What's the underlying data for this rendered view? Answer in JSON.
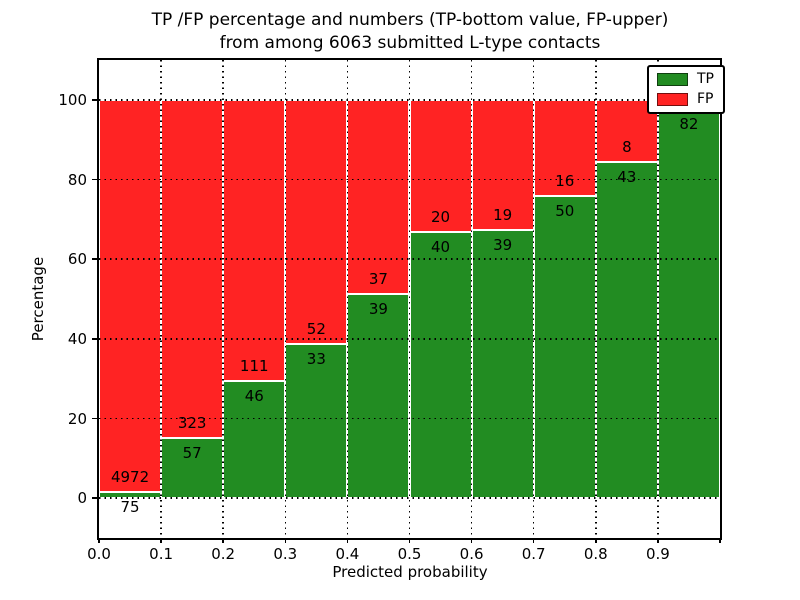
{
  "title": {
    "line1": "TP /FP percentage and numbers (TP-bottom value, FP-upper)",
    "line2": "from among 6063 submitted L-type contacts"
  },
  "axes": {
    "xlabel": "Predicted probability",
    "ylabel": "Percentage",
    "x_tick_labels": [
      "0.0",
      "0.1",
      "0.2",
      "0.3",
      "0.4",
      "0.5",
      "0.6",
      "0.7",
      "0.8",
      "0.9"
    ],
    "y_tick_labels": [
      "0",
      "20",
      "40",
      "60",
      "80",
      "100"
    ],
    "y_tick_values": [
      0,
      20,
      40,
      60,
      80,
      100
    ]
  },
  "legend": {
    "items": [
      {
        "label": "TP",
        "color": "#228c22"
      },
      {
        "label": "FP",
        "color": "#ff2323"
      }
    ]
  },
  "colors": {
    "tp_green": "#228c22",
    "fp_red": "#ff2323",
    "background": "#ffffff",
    "axis": "#000000"
  },
  "chart_data": {
    "type": "bar",
    "stacked": true,
    "normalized_to_percent": true,
    "title": "TP /FP percentage and numbers (TP-bottom value, FP-upper) from among 6063 submitted L-type contacts",
    "xlabel": "Predicted probability",
    "ylabel": "Percentage",
    "xlim": [
      0,
      1
    ],
    "ylim": [
      -10,
      110
    ],
    "grid": true,
    "legend_position": "upper right",
    "bin_edges": [
      0.0,
      0.1,
      0.2,
      0.3,
      0.4,
      0.5,
      0.6,
      0.7,
      0.8,
      0.9,
      1.0
    ],
    "categories": [
      "0.0-0.1",
      "0.1-0.2",
      "0.2-0.3",
      "0.3-0.4",
      "0.4-0.5",
      "0.5-0.6",
      "0.6-0.7",
      "0.7-0.8",
      "0.8-0.9",
      "0.9-1.0"
    ],
    "series": [
      {
        "name": "TP",
        "color": "#228c22",
        "counts": [
          75,
          57,
          46,
          33,
          39,
          40,
          39,
          50,
          43,
          82
        ]
      },
      {
        "name": "FP",
        "color": "#ff2323",
        "counts": [
          4972,
          323,
          111,
          52,
          37,
          20,
          19,
          16,
          8,
          null
        ]
      }
    ],
    "tp_value_labels": [
      "75",
      "57",
      "46",
      "33",
      "39",
      "40",
      "39",
      "50",
      "43",
      "82"
    ],
    "fp_value_labels": [
      "4972",
      "323",
      "111",
      "52",
      "37",
      "20",
      "19",
      "16",
      "8",
      ""
    ],
    "tp_percent": [
      1.5,
      15.0,
      29.3,
      38.8,
      51.3,
      66.7,
      67.2,
      75.8,
      84.3,
      97.6
    ]
  }
}
